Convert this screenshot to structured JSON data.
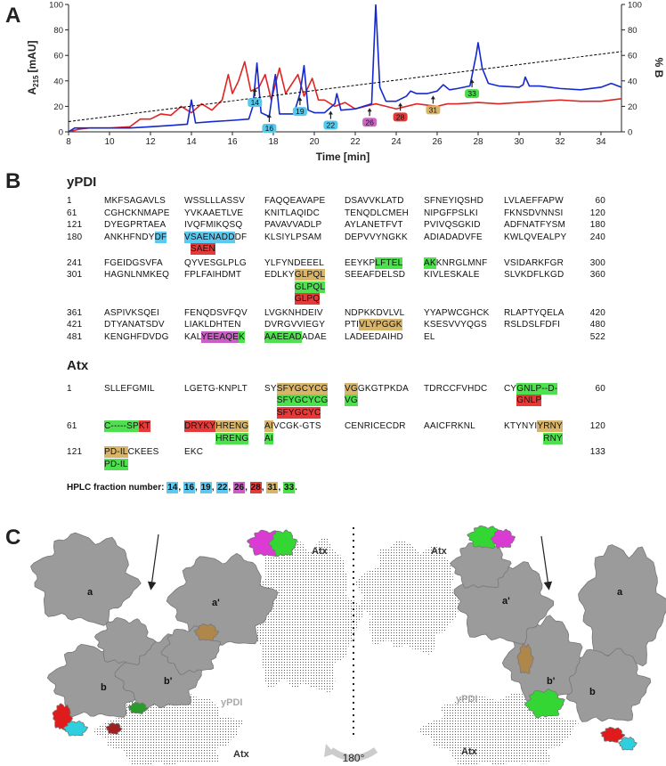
{
  "panels": {
    "a": "A",
    "b": "B",
    "c": "C"
  },
  "chart_data": {
    "type": "line",
    "y_label": "A",
    "y_label_sub": "215",
    "y_label_unit": "[mAU]",
    "x_label": "Time [min]",
    "y2_label": "% B",
    "xlim": [
      8,
      35
    ],
    "xticks": [
      8,
      10,
      12,
      14,
      16,
      18,
      20,
      22,
      24,
      26,
      28,
      30,
      32,
      34
    ],
    "ylim": [
      0,
      100
    ],
    "yticks": [
      0,
      20,
      40,
      60,
      80,
      100
    ],
    "y2lim": [
      0,
      100
    ],
    "y2ticks": [
      0,
      20,
      40,
      60,
      80,
      100
    ],
    "series": [
      {
        "color": "#e02424",
        "x": [
          8,
          8.5,
          9,
          10,
          11,
          11.5,
          12,
          12.5,
          13,
          13.5,
          14,
          14.5,
          15,
          15.5,
          15.8,
          16,
          16.3,
          16.6,
          16.9,
          17.3,
          17.6,
          17.9,
          18.3,
          18.6,
          19,
          19.2,
          19.5,
          19.9,
          20.2,
          20.5,
          21,
          21.5,
          22,
          22.5,
          23,
          23.5,
          24,
          25,
          26,
          26.5,
          27,
          28,
          29,
          30,
          31,
          32,
          33,
          34,
          35
        ],
        "values": [
          0,
          2,
          3,
          3,
          4,
          10,
          10,
          14,
          13,
          20,
          15,
          22,
          17,
          25,
          45,
          30,
          40,
          55,
          32,
          35,
          45,
          25,
          50,
          30,
          40,
          45,
          28,
          42,
          25,
          25,
          20,
          23,
          18,
          20,
          22,
          20,
          18,
          22,
          20,
          22,
          22,
          23,
          22,
          23,
          24,
          25,
          24,
          24,
          26
        ]
      },
      {
        "color": "#1428d0",
        "x": [
          8,
          8.3,
          9,
          10,
          11,
          12,
          13,
          13.8,
          14,
          14.2,
          15,
          16,
          16.8,
          17,
          17.2,
          17.4,
          17.8,
          18,
          18.1,
          18.3,
          19,
          19.3,
          19.5,
          19.7,
          20,
          20.5,
          21,
          21.1,
          21.3,
          22,
          22.8,
          23,
          23.2,
          23.5,
          24,
          24.5,
          24.7,
          25,
          25.5,
          26,
          26.3,
          26.6,
          27,
          27.6,
          27.9,
          28,
          28.2,
          28.5,
          29,
          30,
          30.2,
          30.3,
          30.5,
          31,
          32,
          33,
          34,
          34.5,
          35
        ],
        "values": [
          0,
          3,
          3,
          3,
          3,
          4,
          5,
          6,
          25,
          7,
          8,
          9,
          10,
          20,
          54,
          15,
          12,
          35,
          45,
          14,
          14,
          30,
          52,
          17,
          15,
          15,
          22,
          30,
          17,
          18,
          22,
          100,
          35,
          24,
          24,
          28,
          32,
          30,
          30,
          32,
          37,
          33,
          34,
          36,
          60,
          70,
          50,
          38,
          36,
          35,
          37,
          43,
          36,
          36,
          34,
          33,
          35,
          38,
          35
        ]
      },
      {
        "color": "#000000",
        "axis": "y2",
        "dashed": true,
        "x": [
          8,
          35
        ],
        "values": [
          8,
          63
        ]
      }
    ],
    "fractions": [
      {
        "label": "14",
        "x": 17.1,
        "color": "#55c8ee"
      },
      {
        "label": "16",
        "x": 17.8,
        "color": "#55c8ee"
      },
      {
        "label": "19",
        "x": 19.3,
        "color": "#55c8ee"
      },
      {
        "label": "22",
        "x": 20.8,
        "color": "#55c8ee"
      },
      {
        "label": "26",
        "x": 22.7,
        "color": "#cc66c6"
      },
      {
        "label": "28",
        "x": 24.2,
        "color": "#e23a3a"
      },
      {
        "label": "31",
        "x": 25.8,
        "color": "#d9b56a"
      },
      {
        "label": "33",
        "x": 27.7,
        "color": "#48dc48"
      }
    ]
  },
  "sequences": [
    {
      "title": "yPDI",
      "rows": [
        {
          "start": "1",
          "cells": [
            [
              {
                "text": "MKFSAGAVLS"
              }
            ],
            [
              {
                "text": "WSSLLLASSV"
              }
            ],
            [
              {
                "text": "FAQQEAVAPE"
              }
            ],
            [
              {
                "text": "DSAVVKLATD"
              }
            ],
            [
              {
                "text": "SFNEYIQSHD"
              }
            ],
            [
              {
                "text": "LVLAEFFAPW"
              }
            ]
          ],
          "end": "60"
        },
        {
          "start": "61",
          "cells": [
            [
              {
                "text": "CGHCKNMAPE"
              }
            ],
            [
              {
                "text": "YVKAAETLVE"
              }
            ],
            [
              {
                "text": "KNITLAQIDC"
              }
            ],
            [
              {
                "text": "TENQDLCMEH"
              }
            ],
            [
              {
                "text": "NIPGFPSLKI"
              }
            ],
            [
              {
                "text": "FKNSDVNNSI"
              }
            ]
          ],
          "end": "120"
        },
        {
          "start": "121",
          "cells": [
            [
              {
                "text": "DYEGPRTAEA"
              }
            ],
            [
              {
                "text": "IVQFMIKQSQ"
              }
            ],
            [
              {
                "text": "PAVAVVADLP"
              }
            ],
            [
              {
                "text": "AYLANETFVT"
              }
            ],
            [
              {
                "text": "PVIVQSGKID"
              }
            ],
            [
              {
                "text": "ADFNATFYSM"
              }
            ]
          ],
          "end": "180"
        },
        {
          "start": "180",
          "cells": [
            [
              {
                "text": "ANKHFNDY"
              },
              {
                "text": "DF",
                "color": "#5ccaf0"
              }
            ],
            [
              {
                "text": "VSAENADD",
                "color": "#5ccaf0"
              },
              {
                "text": "DF"
              }
            ],
            [
              {
                "text": "KLSIYLPSAM"
              }
            ],
            [
              {
                "text": "DEPVVYNGKK"
              }
            ],
            [
              {
                "text": "ADIADADVFE"
              }
            ],
            [
              {
                "text": "KWLQVEALPY"
              }
            ]
          ],
          "end": "240"
        },
        {
          "cells": [
            null,
            [
              {
                "text": "SAEN",
                "color": "#e63a3a"
              }
            ],
            null,
            null,
            null,
            null
          ]
        },
        {
          "start": "241",
          "cells": [
            [
              {
                "text": "FGEIDGSVFA"
              }
            ],
            [
              {
                "text": "QYVESGLPLG"
              }
            ],
            [
              {
                "text": "YLFYNDEEEL"
              }
            ],
            [
              {
                "text": "EEYKP"
              },
              {
                "text": "LFTEL",
                "color": "#4ee04e"
              }
            ],
            [
              {
                "text": "AK",
                "color": "#4ee04e"
              },
              {
                "text": "KNRGLMNF"
              }
            ],
            [
              {
                "text": "VSIDARKFGR"
              }
            ]
          ],
          "end": "300"
        },
        {
          "start": "301",
          "cells": [
            [
              {
                "text": "HAGNLNMKEQ"
              }
            ],
            [
              {
                "text": "FPLFAIHDMT"
              }
            ],
            [
              {
                "text": "EDLKY"
              },
              {
                "text": "GLPQL",
                "color": "#d9b56a"
              }
            ],
            [
              {
                "text": "SEEAFDELSD"
              }
            ],
            [
              {
                "text": "KIVLESKALE"
              }
            ],
            [
              {
                "text": "SLVKDFLKGD"
              }
            ]
          ],
          "end": "360"
        },
        {
          "cells": [
            null,
            null,
            [
              {
                "text": "GLPQL",
                "color": "#4ee04e"
              }
            ],
            null,
            null,
            null
          ]
        },
        {
          "cells": [
            null,
            null,
            [
              {
                "text": "GLPQ",
                "color": "#e63a3a"
              }
            ],
            null,
            null,
            null
          ]
        },
        {
          "start": "361",
          "cells": [
            [
              {
                "text": "ASPIVKSQEI"
              }
            ],
            [
              {
                "text": "FENQDSVFQV"
              }
            ],
            [
              {
                "text": "LVGKNHDEIV"
              }
            ],
            [
              {
                "text": "NDPKKDVLVL"
              }
            ],
            [
              {
                "text": "YYAPWCGHCK"
              }
            ],
            [
              {
                "text": "RLAPTYQELA"
              }
            ]
          ],
          "end": "420"
        },
        {
          "start": "421",
          "cells": [
            [
              {
                "text": "DTYANATSDV"
              }
            ],
            [
              {
                "text": "LIAKLDHTEN"
              }
            ],
            [
              {
                "text": "DVRGVVIEGY"
              }
            ],
            [
              {
                "text": "PTI"
              },
              {
                "text": "VLYPGGK",
                "color": "#d9b56a"
              }
            ],
            [
              {
                "text": "KSESVVYQGS"
              }
            ],
            [
              {
                "text": "RSLDSLFDFI"
              }
            ]
          ],
          "end": "480"
        },
        {
          "start": "481",
          "cells": [
            [
              {
                "text": "KENGHFDVDG"
              }
            ],
            [
              {
                "text": "KAL"
              },
              {
                "text": "YEEAQE",
                "color": "#c95fc4"
              },
              {
                "text": "K",
                "color": "#4ee04e"
              }
            ],
            [
              {
                "text": "AAEEAD",
                "color": "#4ee04e"
              },
              {
                "text": "ADAE"
              }
            ],
            [
              {
                "text": "LADEEDAIHD"
              }
            ],
            [
              {
                "text": "EL"
              }
            ],
            null
          ],
          "end": "522"
        }
      ]
    },
    {
      "title": "Atx",
      "rows": [
        {
          "start": "1",
          "cells": [
            [
              {
                "text": "SLLEFGMIL"
              }
            ],
            [
              {
                "text": "LGETG-KNPLT"
              }
            ],
            [
              {
                "text": "SY"
              },
              {
                "text": "SFYGCYCG",
                "color": "#d9b56a"
              }
            ],
            [
              {
                "text": "VG",
                "color": "#d9b56a"
              },
              {
                "text": "GKGTPKDA"
              }
            ],
            [
              {
                "text": "TDRCCFVHDC"
              }
            ],
            [
              {
                "text": "CY"
              },
              {
                "text": "GNLP--D-",
                "color": "#4ee04e"
              }
            ]
          ],
          "end": "60"
        },
        {
          "cells": [
            null,
            null,
            [
              {
                "text": "SFYGCYCG",
                "color": "#4ee04e"
              }
            ],
            [
              {
                "text": "VG",
                "color": "#4ee04e"
              }
            ],
            null,
            [
              {
                "text": "GNLP",
                "color": "#e63a3a"
              }
            ]
          ]
        },
        {
          "cells": [
            null,
            null,
            [
              {
                "text": "SFYGCYC",
                "color": "#e63a3a"
              }
            ],
            null,
            null,
            null
          ]
        },
        {
          "start": "61",
          "cells": [
            [
              {
                "text": "C-----SP",
                "color": "#4ee04e"
              },
              {
                "text": "KT",
                "color": "#e63a3a"
              }
            ],
            [
              {
                "text": "DRYKY",
                "color": "#e63a3a"
              },
              {
                "text": "HRENG",
                "color": "#d9b56a"
              }
            ],
            [
              {
                "text": "AI",
                "color": "#d9b56a"
              },
              {
                "text": "VCGK-GTS"
              }
            ],
            [
              {
                "text": "CENRICECDR"
              }
            ],
            [
              {
                "text": "AAICFRKNL"
              }
            ],
            [
              {
                "text": "KTYNYI"
              },
              {
                "text": "YRNY",
                "color": "#d9b56a"
              }
            ]
          ],
          "end": "120"
        },
        {
          "cells": [
            null,
            [
              {
                "text": "HRENG",
                "color": "#4ee04e"
              }
            ],
            [
              {
                "text": "AI",
                "color": "#4ee04e"
              }
            ],
            null,
            null,
            [
              {
                "text": "RNY",
                "color": "#4ee04e"
              }
            ]
          ]
        },
        {
          "start": "121",
          "cells": [
            [
              {
                "text": "PD-IL",
                "color": "#d9b56a"
              },
              {
                "text": "CKEES"
              }
            ],
            [
              {
                "text": "EKC"
              }
            ],
            null,
            null,
            null,
            null
          ],
          "end": "133"
        },
        {
          "cells": [
            [
              {
                "text": "PD-IL",
                "color": "#4ee04e"
              }
            ],
            null,
            null,
            null,
            null,
            null
          ]
        }
      ]
    }
  ],
  "fraction_legend": {
    "label": "HPLC fraction number:",
    "separator": ",",
    "end": ".",
    "items": [
      {
        "text": "14",
        "color": "#5ccaf0"
      },
      {
        "text": "16",
        "color": "#5ccaf0"
      },
      {
        "text": "19",
        "color": "#5ccaf0"
      },
      {
        "text": "22",
        "color": "#5ccaf0"
      },
      {
        "text": "26",
        "color": "#c95fc4"
      },
      {
        "text": "28",
        "color": "#e63a3a"
      },
      {
        "text": "31",
        "color": "#d9b56a"
      },
      {
        "text": "33",
        "color": "#4ee04e"
      }
    ]
  },
  "structure": {
    "left_labels": [
      "a",
      "b",
      "b'",
      "a'",
      "yPDI",
      "Atx",
      "Atx"
    ],
    "right_labels": [
      "Atx",
      "a'",
      "b'",
      "b",
      "a",
      "yPDI",
      "Atx"
    ],
    "rotation": "180°"
  }
}
